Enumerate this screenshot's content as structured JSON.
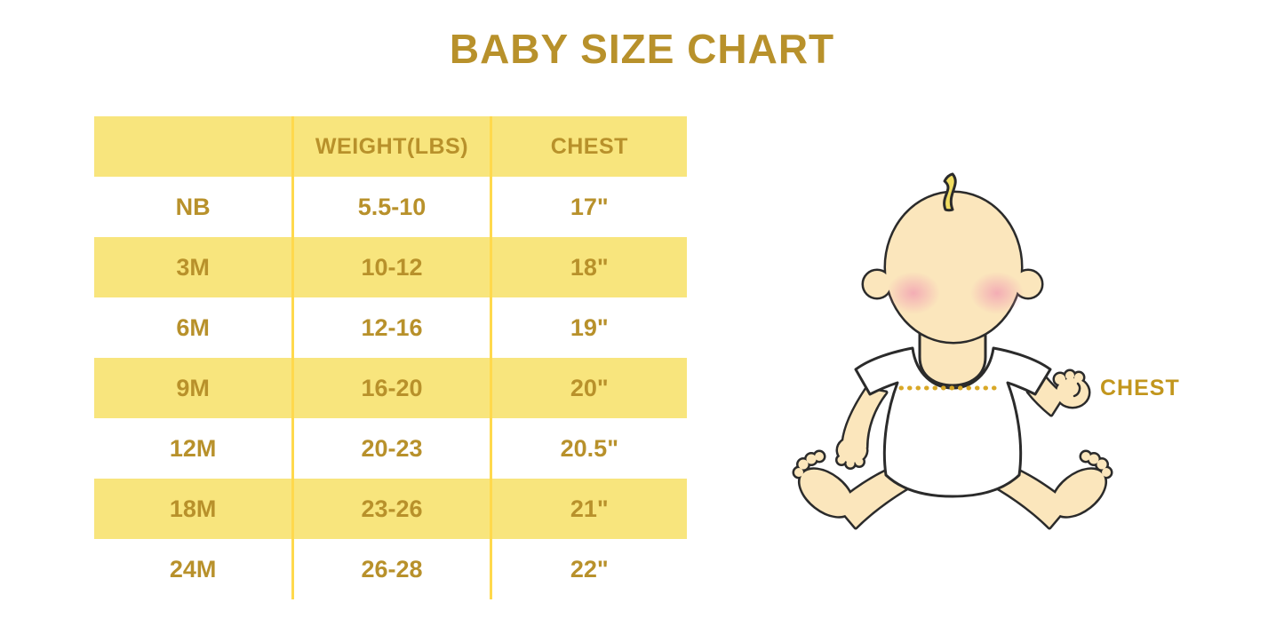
{
  "title": "BABY SIZE CHART",
  "chart_data": {
    "type": "table",
    "title": "BABY SIZE CHART",
    "columns": [
      "",
      "WEIGHT(LBS)",
      "CHEST"
    ],
    "rows": [
      [
        "NB",
        "5.5-10",
        "17\""
      ],
      [
        "3M",
        "10-12",
        "18\""
      ],
      [
        "6M",
        "12-16",
        "19\""
      ],
      [
        "9M",
        "16-20",
        "20\""
      ],
      [
        "12M",
        "20-23",
        "20.5\""
      ],
      [
        "18M",
        "23-26",
        "21\""
      ],
      [
        "24M",
        "26-28",
        "22\""
      ]
    ],
    "layout_hints": {
      "row_striping": "header and alternating rows pastel yellow, starting with header",
      "column_dividers": "bright yellow vertical lines, equal thirds"
    }
  },
  "illustration": {
    "name": "seated-baby-with-chest-measurement",
    "chest_label": "CHEST",
    "measure_line": "dotted horizontal line across chest"
  },
  "colors": {
    "accent_gold_text": "#B8912B",
    "row_yellow": "#F8E57D",
    "divider_yellow": "#FFD94D",
    "chest_label_gold": "#C2961D",
    "skin": "#FBE6BC",
    "hair_yellow": "#F2DE62",
    "blush_pink": "#F2A3B3",
    "outline": "#2B2B2B",
    "background": "#FFFFFF"
  }
}
